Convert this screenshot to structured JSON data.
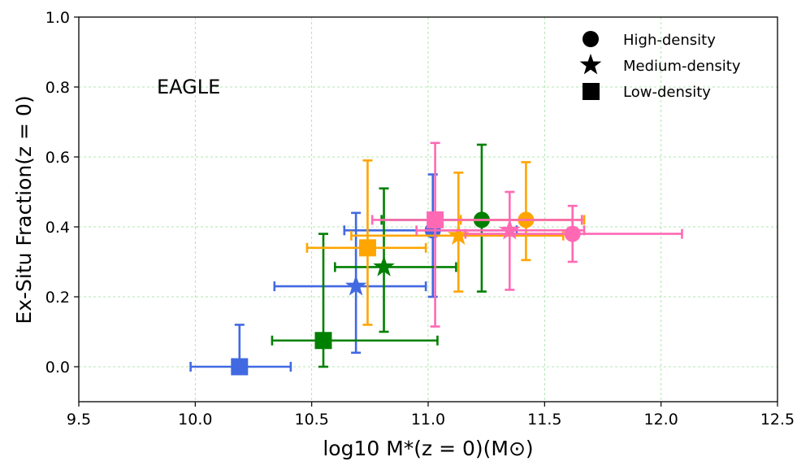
{
  "chart_data": {
    "type": "scatter",
    "annotation": "EAGLE",
    "xlabel": "log10 M*(z = 0)(M⊙)",
    "ylabel": "Ex-Situ Fraction(z = 0)",
    "xlim": [
      9.5,
      12.5
    ],
    "ylim": [
      -0.1,
      1.0
    ],
    "x_ticks": [
      "9.5",
      "10.0",
      "10.5",
      "11.0",
      "11.5",
      "12.0",
      "12.5"
    ],
    "y_ticks": [
      "0.0",
      "0.2",
      "0.4",
      "0.6",
      "0.8",
      "1.0"
    ],
    "x_tick_values": [
      9.5,
      10.0,
      10.5,
      11.0,
      11.5,
      12.0,
      12.5
    ],
    "y_tick_values": [
      0.0,
      0.2,
      0.4,
      0.6,
      0.8,
      1.0
    ],
    "grid": true,
    "legend_position": "top-right",
    "legend": [
      {
        "label": "High-density",
        "marker": "circle"
      },
      {
        "label": "Medium-density",
        "marker": "star"
      },
      {
        "label": "Low-density",
        "marker": "square"
      }
    ],
    "series": [
      {
        "name": "blue",
        "color": "#4169E1",
        "points": [
          {
            "density": "Low-density",
            "marker": "square",
            "x": 10.19,
            "y": 0.0,
            "xerr": [
              9.98,
              10.41
            ],
            "yerr": [
              0.0,
              0.12
            ]
          },
          {
            "density": "Medium-density",
            "marker": "star",
            "x": 10.69,
            "y": 0.23,
            "xerr": [
              10.34,
              10.99
            ],
            "yerr": [
              0.04,
              0.44
            ]
          },
          {
            "density": "High-density",
            "marker": "circle",
            "x": 11.02,
            "y": 0.39,
            "xerr": [
              10.64,
              11.38
            ],
            "yerr": [
              0.2,
              0.55
            ]
          }
        ]
      },
      {
        "name": "green",
        "color": "#008000",
        "points": [
          {
            "density": "Low-density",
            "marker": "square",
            "x": 10.55,
            "y": 0.075,
            "xerr": [
              10.33,
              11.04
            ],
            "yerr": [
              0.0,
              0.38
            ]
          },
          {
            "density": "Medium-density",
            "marker": "star",
            "x": 10.81,
            "y": 0.285,
            "xerr": [
              10.6,
              11.12
            ],
            "yerr": [
              0.1,
              0.51
            ]
          },
          {
            "density": "High-density",
            "marker": "circle",
            "x": 11.23,
            "y": 0.42,
            "xerr": [
              10.8,
              11.62
            ],
            "yerr": [
              0.215,
              0.635
            ]
          }
        ]
      },
      {
        "name": "orange",
        "color": "#FFA500",
        "points": [
          {
            "density": "Low-density",
            "marker": "square",
            "x": 10.74,
            "y": 0.34,
            "xerr": [
              10.48,
              10.99
            ],
            "yerr": [
              0.12,
              0.59
            ]
          },
          {
            "density": "Medium-density",
            "marker": "star",
            "x": 11.13,
            "y": 0.375,
            "xerr": [
              10.67,
              11.58
            ],
            "yerr": [
              0.215,
              0.555
            ]
          },
          {
            "density": "High-density",
            "marker": "circle",
            "x": 11.42,
            "y": 0.42,
            "xerr": [
              11.14,
              11.67
            ],
            "yerr": [
              0.305,
              0.585
            ]
          }
        ]
      },
      {
        "name": "pink",
        "color": "#FF69B4",
        "points": [
          {
            "density": "Low-density",
            "marker": "square",
            "x": 11.03,
            "y": 0.42,
            "xerr": [
              10.76,
              11.66
            ],
            "yerr": [
              0.115,
              0.64
            ]
          },
          {
            "density": "Medium-density",
            "marker": "star",
            "x": 11.35,
            "y": 0.39,
            "xerr": [
              10.95,
              11.67
            ],
            "yerr": [
              0.22,
              0.5
            ]
          },
          {
            "density": "High-density",
            "marker": "circle",
            "x": 11.62,
            "y": 0.38,
            "xerr": [
              11.16,
              12.09
            ],
            "yerr": [
              0.3,
              0.46
            ]
          }
        ]
      }
    ]
  }
}
